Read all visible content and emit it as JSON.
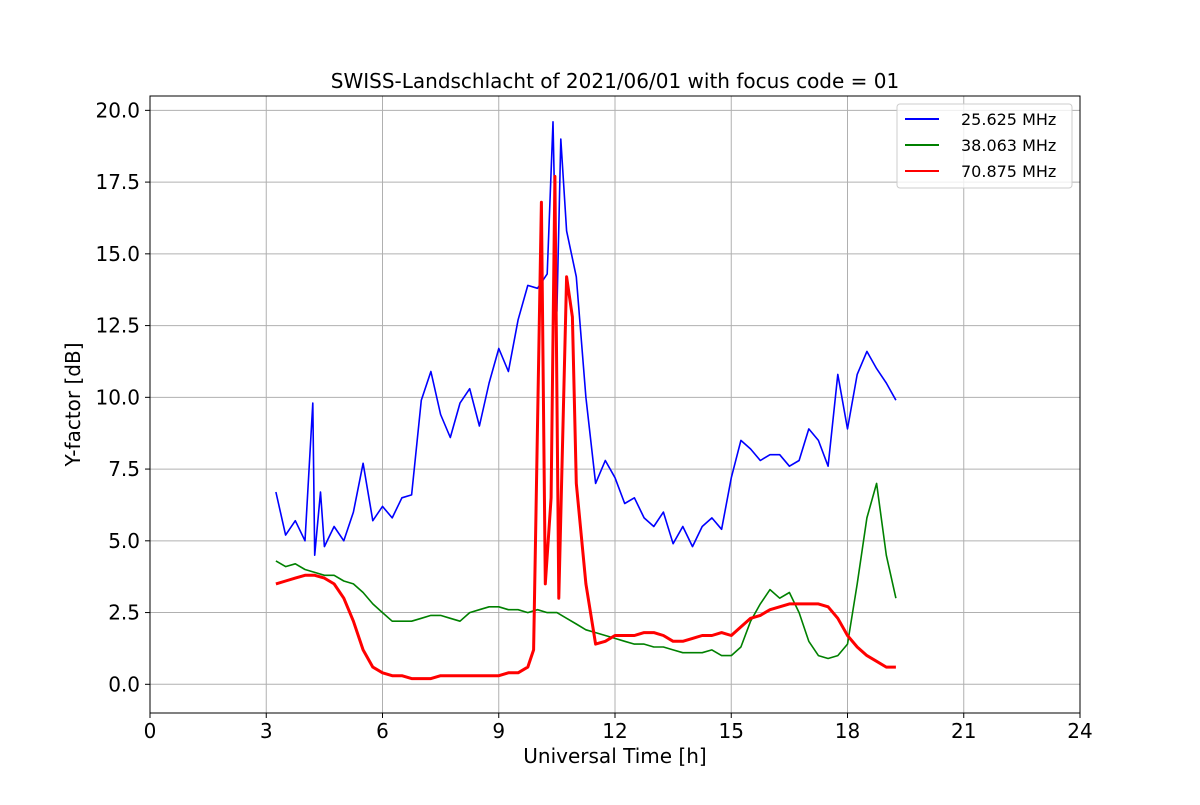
{
  "chart_data": {
    "type": "line",
    "title": "SWISS-Landschlacht of 2021/06/01 with focus code = 01",
    "xlabel": "Universal Time [h]",
    "ylabel": "Y-factor [dB]",
    "xlim": [
      0,
      24
    ],
    "ylim": [
      -1.0,
      20.5
    ],
    "xticks": [
      0,
      3,
      6,
      9,
      12,
      15,
      18,
      21,
      24
    ],
    "xtick_labels": [
      "0",
      "3",
      "6",
      "9",
      "12",
      "15",
      "18",
      "21",
      "24"
    ],
    "yticks": [
      0,
      2.5,
      5,
      7.5,
      10,
      12.5,
      15,
      17.5,
      20
    ],
    "ytick_labels": [
      "0.0",
      "2.5",
      "5.0",
      "7.5",
      "10.0",
      "12.5",
      "15.0",
      "17.5",
      "20.0"
    ],
    "grid": true,
    "legend_position": "top-right",
    "series": [
      {
        "name": "25.625 MHz",
        "color": "#0000ff",
        "x": [
          3.25,
          3.5,
          3.75,
          4.0,
          4.2,
          4.25,
          4.4,
          4.5,
          4.75,
          5.0,
          5.25,
          5.5,
          5.75,
          6.0,
          6.25,
          6.5,
          6.75,
          7.0,
          7.25,
          7.5,
          7.75,
          8.0,
          8.25,
          8.5,
          8.75,
          9.0,
          9.25,
          9.5,
          9.75,
          10.0,
          10.25,
          10.4,
          10.5,
          10.6,
          10.75,
          11.0,
          11.25,
          11.5,
          11.75,
          12.0,
          12.25,
          12.5,
          12.75,
          13.0,
          13.25,
          13.5,
          13.75,
          14.0,
          14.25,
          14.5,
          14.75,
          15.0,
          15.25,
          15.5,
          15.75,
          16.0,
          16.25,
          16.5,
          16.75,
          17.0,
          17.25,
          17.5,
          17.75,
          18.0,
          18.25,
          18.5,
          18.75,
          19.0,
          19.25
        ],
        "y": [
          6.7,
          5.2,
          5.7,
          5.0,
          9.8,
          4.5,
          6.7,
          4.8,
          5.5,
          5.0,
          6.0,
          7.7,
          5.7,
          6.2,
          5.8,
          6.5,
          6.6,
          9.9,
          10.9,
          9.4,
          8.6,
          9.8,
          10.3,
          9.0,
          10.5,
          11.7,
          10.9,
          12.7,
          13.9,
          13.8,
          14.3,
          19.6,
          13.0,
          19.0,
          15.8,
          14.2,
          10.0,
          7.0,
          7.8,
          7.2,
          6.3,
          6.5,
          5.8,
          5.5,
          6.0,
          4.9,
          5.5,
          4.8,
          5.5,
          5.8,
          5.4,
          7.2,
          8.5,
          8.2,
          7.8,
          8.0,
          8.0,
          7.6,
          7.8,
          8.9,
          8.5,
          7.6,
          10.8,
          8.9,
          10.8,
          11.6,
          11.0,
          10.5,
          9.9
        ]
      },
      {
        "name": "38.063 MHz",
        "color": "#008000",
        "x": [
          3.25,
          3.5,
          3.75,
          4.0,
          4.25,
          4.5,
          4.75,
          5.0,
          5.25,
          5.5,
          5.75,
          6.0,
          6.25,
          6.5,
          6.75,
          7.0,
          7.25,
          7.5,
          7.75,
          8.0,
          8.25,
          8.5,
          8.75,
          9.0,
          9.25,
          9.5,
          9.75,
          10.0,
          10.25,
          10.5,
          10.75,
          11.0,
          11.25,
          11.5,
          11.75,
          12.0,
          12.25,
          12.5,
          12.75,
          13.0,
          13.25,
          13.5,
          13.75,
          14.0,
          14.25,
          14.5,
          14.75,
          15.0,
          15.25,
          15.5,
          15.75,
          16.0,
          16.25,
          16.5,
          16.75,
          17.0,
          17.25,
          17.5,
          17.75,
          18.0,
          18.25,
          18.5,
          18.75,
          19.0,
          19.25
        ],
        "y": [
          4.3,
          4.1,
          4.2,
          4.0,
          3.9,
          3.8,
          3.8,
          3.6,
          3.5,
          3.2,
          2.8,
          2.5,
          2.2,
          2.2,
          2.2,
          2.3,
          2.4,
          2.4,
          2.3,
          2.2,
          2.5,
          2.6,
          2.7,
          2.7,
          2.6,
          2.6,
          2.5,
          2.6,
          2.5,
          2.5,
          2.3,
          2.1,
          1.9,
          1.8,
          1.7,
          1.6,
          1.5,
          1.4,
          1.4,
          1.3,
          1.3,
          1.2,
          1.1,
          1.1,
          1.1,
          1.2,
          1.0,
          1.0,
          1.3,
          2.2,
          2.8,
          3.3,
          3.0,
          3.2,
          2.5,
          1.5,
          1.0,
          0.9,
          1.0,
          1.4,
          3.5,
          5.8,
          7.0,
          4.5,
          3.0
        ]
      },
      {
        "name": "70.875 MHz",
        "color": "#ff0000",
        "x": [
          3.25,
          3.5,
          3.75,
          4.0,
          4.25,
          4.5,
          4.75,
          5.0,
          5.25,
          5.5,
          5.75,
          6.0,
          6.25,
          6.5,
          6.75,
          7.0,
          7.25,
          7.5,
          7.75,
          8.0,
          8.25,
          8.5,
          8.75,
          9.0,
          9.25,
          9.5,
          9.75,
          9.9,
          10.1,
          10.2,
          10.35,
          10.45,
          10.55,
          10.75,
          10.9,
          11.0,
          11.25,
          11.5,
          11.75,
          12.0,
          12.25,
          12.5,
          12.75,
          13.0,
          13.25,
          13.5,
          13.75,
          14.0,
          14.25,
          14.5,
          14.75,
          15.0,
          15.25,
          15.5,
          15.75,
          16.0,
          16.25,
          16.5,
          16.75,
          17.0,
          17.25,
          17.5,
          17.75,
          18.0,
          18.25,
          18.5,
          18.75,
          19.0,
          19.25
        ],
        "y": [
          3.5,
          3.6,
          3.7,
          3.8,
          3.8,
          3.7,
          3.5,
          3.0,
          2.2,
          1.2,
          0.6,
          0.4,
          0.3,
          0.3,
          0.2,
          0.2,
          0.2,
          0.3,
          0.3,
          0.3,
          0.3,
          0.3,
          0.3,
          0.3,
          0.4,
          0.4,
          0.6,
          1.2,
          16.8,
          3.5,
          6.5,
          17.7,
          3.0,
          14.2,
          12.8,
          7.0,
          3.5,
          1.4,
          1.5,
          1.7,
          1.7,
          1.7,
          1.8,
          1.8,
          1.7,
          1.5,
          1.5,
          1.6,
          1.7,
          1.7,
          1.8,
          1.7,
          2.0,
          2.3,
          2.4,
          2.6,
          2.7,
          2.8,
          2.8,
          2.8,
          2.8,
          2.7,
          2.3,
          1.7,
          1.3,
          1.0,
          0.8,
          0.6,
          0.6
        ]
      }
    ]
  }
}
